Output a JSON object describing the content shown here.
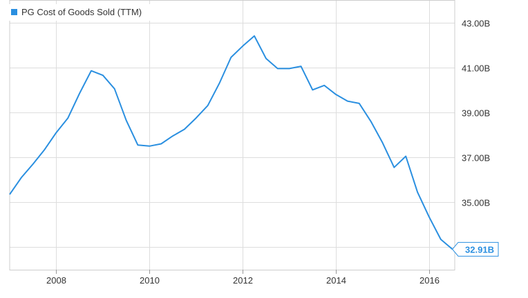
{
  "chart_data": {
    "type": "line",
    "title": "",
    "xlabel": "",
    "ylabel": "",
    "x_range": [
      2007.0,
      2016.55
    ],
    "ylim": [
      32.0,
      44.0
    ],
    "x_ticks": [
      {
        "value": 2008,
        "label": "2008"
      },
      {
        "value": 2010,
        "label": "2010"
      },
      {
        "value": 2012,
        "label": "2012"
      },
      {
        "value": 2014,
        "label": "2014"
      },
      {
        "value": 2016,
        "label": "2016"
      }
    ],
    "y_ticks": [
      {
        "value": 33,
        "label": ""
      },
      {
        "value": 35,
        "label": "35.00B"
      },
      {
        "value": 37,
        "label": "37.00B"
      },
      {
        "value": 39,
        "label": "39.00B"
      },
      {
        "value": 41,
        "label": "41.00B"
      },
      {
        "value": 43,
        "label": "43.00B"
      }
    ],
    "grid": true,
    "legend_position": "top-left",
    "series": [
      {
        "name": "PG Cost of Goods Sold (TTM)",
        "color": "#2a8fe0",
        "x": [
          2007.0,
          2007.25,
          2007.5,
          2007.75,
          2008.0,
          2008.25,
          2008.5,
          2008.75,
          2009.0,
          2009.25,
          2009.5,
          2009.75,
          2010.0,
          2010.25,
          2010.5,
          2010.75,
          2011.0,
          2011.25,
          2011.5,
          2011.75,
          2012.0,
          2012.25,
          2012.5,
          2012.75,
          2013.0,
          2013.25,
          2013.5,
          2013.75,
          2014.0,
          2014.25,
          2014.5,
          2014.75,
          2015.0,
          2015.25,
          2015.5,
          2015.75,
          2016.0,
          2016.25,
          2016.5
        ],
        "values": [
          35.35,
          36.1,
          36.7,
          37.35,
          38.1,
          38.75,
          39.85,
          40.85,
          40.65,
          40.05,
          38.65,
          37.55,
          37.5,
          37.6,
          37.95,
          38.25,
          38.75,
          39.3,
          40.3,
          41.45,
          41.95,
          42.4,
          41.4,
          40.95,
          40.95,
          41.05,
          40.0,
          40.2,
          39.8,
          39.5,
          39.4,
          38.6,
          37.65,
          36.55,
          37.05,
          35.45,
          34.35,
          33.35,
          32.91
        ]
      }
    ],
    "last_value_label": "32.91B"
  }
}
